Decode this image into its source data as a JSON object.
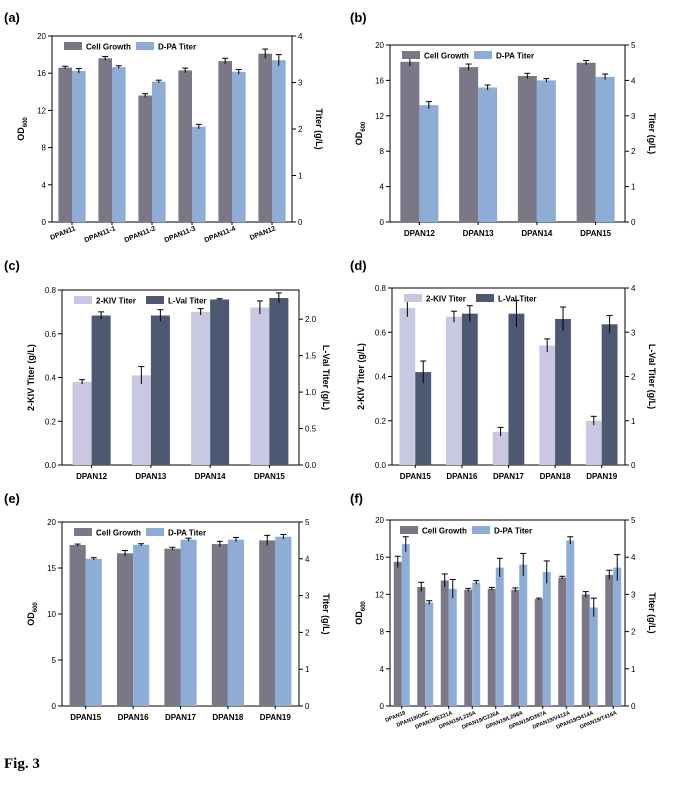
{
  "figure_label": "Fig. 3",
  "colors": {
    "od": "#7b7786",
    "titer": "#8eadd6",
    "kiv": "#c9c8e2",
    "val": "#4d5873",
    "axis": "#000000"
  },
  "chart_data": [
    {
      "panel": "(a)",
      "type": "bar",
      "categories": [
        "DPAN11",
        "DPAN11-1",
        "DPAN11-2",
        "DPAN11-3",
        "DPAN11-4",
        "DPAN12"
      ],
      "ylabel": "OD600",
      "y2label": "Titer (g/L)",
      "ylim": [
        0,
        20
      ],
      "yticks": [
        "0",
        "4",
        "8",
        "12",
        "16",
        "20"
      ],
      "y2lim": [
        0,
        4
      ],
      "y2ticks": [
        "0",
        "1",
        "2",
        "3",
        "4"
      ],
      "legend": "top-left",
      "rotate": true,
      "series": [
        {
          "name": "Cell Growth",
          "axis": "left",
          "color": "od",
          "values": [
            16.6,
            17.6,
            13.6,
            16.3,
            17.3,
            18.1
          ],
          "errors": [
            0.15,
            0.2,
            0.2,
            0.25,
            0.3,
            0.5
          ]
        },
        {
          "name": "D-PA Titer",
          "axis": "right",
          "color": "titer",
          "values": [
            3.25,
            3.33,
            3.02,
            2.05,
            3.23,
            3.48
          ],
          "errors": [
            0.05,
            0.03,
            0.03,
            0.05,
            0.05,
            0.12
          ]
        }
      ]
    },
    {
      "panel": "(b)",
      "type": "bar",
      "categories": [
        "DPAN12",
        "DPAN13",
        "DPAN14",
        "DPAN15"
      ],
      "ylabel": "OD600",
      "y2label": "Titer (g/L)",
      "ylim": [
        0,
        20
      ],
      "yticks": [
        "0",
        "4",
        "8",
        "12",
        "16",
        "20"
      ],
      "y2lim": [
        0,
        5
      ],
      "y2ticks": [
        "0",
        "1",
        "2",
        "3",
        "4",
        "5"
      ],
      "legend": "top-left",
      "rotate": false,
      "series": [
        {
          "name": "Cell Growth",
          "axis": "left",
          "color": "od",
          "values": [
            18.1,
            17.5,
            16.5,
            18.0
          ],
          "errors": [
            0.5,
            0.35,
            0.3,
            0.25
          ]
        },
        {
          "name": "D-PA Titer",
          "axis": "right",
          "color": "titer",
          "values": [
            3.3,
            3.8,
            4.0,
            4.1
          ],
          "errors": [
            0.1,
            0.07,
            0.05,
            0.08
          ]
        }
      ]
    },
    {
      "panel": "(c)",
      "type": "bar",
      "categories": [
        "DPAN12",
        "DPAN13",
        "DPAN14",
        "DPAN15"
      ],
      "ylabel": "2-KIV Titer (g/L)",
      "y2label": "L-Val Titer (g/L)",
      "ylim": [
        0,
        0.8
      ],
      "yticks": [
        "0.0",
        "0.2",
        "0.4",
        "0.6",
        "0.8"
      ],
      "y2lim": [
        0,
        2.4
      ],
      "y2ticks": [
        "0.0",
        "0.5",
        "1.0",
        "1.5",
        "2.0"
      ],
      "y2tickvals": [
        0,
        0.5,
        1.0,
        1.5,
        2.0
      ],
      "legend": "top-left",
      "rotate": false,
      "series": [
        {
          "name": "2-KIV Titer",
          "axis": "left",
          "color": "kiv",
          "values": [
            0.38,
            0.41,
            0.7,
            0.72
          ],
          "errors": [
            0.01,
            0.04,
            0.015,
            0.03
          ]
        },
        {
          "name": "L-Val Titer",
          "axis": "right",
          "color": "val",
          "values": [
            2.05,
            2.05,
            2.27,
            2.29
          ],
          "errors": [
            0.05,
            0.08,
            0.01,
            0.07
          ]
        }
      ]
    },
    {
      "panel": "(d)",
      "type": "bar",
      "categories": [
        "DPAN15",
        "DPAN16",
        "DPAN17",
        "DPAN18",
        "DPAN19"
      ],
      "ylabel": "2-KIV Titer (g/L)",
      "y2label": "L-Val Titer (g/L)",
      "ylim": [
        0,
        0.8
      ],
      "yticks": [
        "0.0",
        "0.2",
        "0.4",
        "0.6",
        "0.8"
      ],
      "y2lim": [
        0,
        4
      ],
      "y2ticks": [
        "0",
        "1",
        "2",
        "3",
        "4"
      ],
      "legend": "top-left",
      "rotate": false,
      "series": [
        {
          "name": "2-KIV Titer",
          "axis": "left",
          "color": "kiv",
          "values": [
            0.71,
            0.67,
            0.15,
            0.54,
            0.2
          ],
          "errors": [
            0.04,
            0.025,
            0.02,
            0.03,
            0.02
          ]
        },
        {
          "name": "L-Val Titer",
          "axis": "right",
          "color": "val",
          "values": [
            2.1,
            3.42,
            3.42,
            3.3,
            3.18
          ],
          "errors": [
            0.25,
            0.18,
            0.3,
            0.27,
            0.2
          ]
        }
      ]
    },
    {
      "panel": "(e)",
      "type": "bar",
      "categories": [
        "DPAN15",
        "DPAN16",
        "DPAN17",
        "DPAN18",
        "DPAN19"
      ],
      "ylabel": "OD600",
      "y2label": "Titer (g/L)",
      "ylim": [
        0,
        20
      ],
      "yticks": [
        "0",
        "5",
        "10",
        "15",
        "20"
      ],
      "y2lim": [
        0,
        5
      ],
      "y2ticks": [
        "0",
        "1",
        "2",
        "3",
        "4",
        "5"
      ],
      "legend": "top-left",
      "rotate": false,
      "series": [
        {
          "name": "Cell Growth",
          "axis": "left",
          "color": "od",
          "values": [
            17.5,
            16.6,
            17.1,
            17.6,
            18.0
          ],
          "errors": [
            0.1,
            0.3,
            0.15,
            0.3,
            0.55
          ]
        },
        {
          "name": "D-PA Titer",
          "axis": "right",
          "color": "titer",
          "values": [
            4.0,
            4.38,
            4.52,
            4.52,
            4.6
          ],
          "errors": [
            0.03,
            0.03,
            0.04,
            0.06,
            0.06
          ]
        }
      ]
    },
    {
      "panel": "(f)",
      "type": "bar",
      "categories": [
        "DPAN19",
        "DPAN19/GltC",
        "DPAN19/E221A",
        "DPAN19/L225A",
        "DPAN19/C226A",
        "DPAN19/L298A",
        "DPAN19/D397A",
        "DPAN19/V412A",
        "DPAN19/S414A",
        "DPAN19/T416A"
      ],
      "ylabel": "OD600",
      "y2label": "Titer (g/L)",
      "ylim": [
        0,
        20
      ],
      "yticks": [
        "0",
        "4",
        "8",
        "12",
        "16",
        "20"
      ],
      "y2lim": [
        0,
        5
      ],
      "y2ticks": [
        "0",
        "1",
        "2",
        "3",
        "4",
        "5"
      ],
      "legend": "top-right",
      "rotate": true,
      "series": [
        {
          "name": "Cell Growth",
          "axis": "left",
          "color": "od",
          "values": [
            15.5,
            12.8,
            13.5,
            12.5,
            12.6,
            12.5,
            11.5,
            13.8,
            12.0,
            14.1
          ],
          "errors": [
            0.6,
            0.5,
            0.7,
            0.15,
            0.15,
            0.2,
            0.1,
            0.15,
            0.3,
            0.5
          ]
        },
        {
          "name": "D-PA Titer",
          "axis": "right",
          "color": "titer",
          "values": [
            4.35,
            2.78,
            3.15,
            3.32,
            3.72,
            3.8,
            3.6,
            4.45,
            2.65,
            3.72
          ],
          "errors": [
            0.2,
            0.05,
            0.25,
            0.05,
            0.25,
            0.3,
            0.3,
            0.1,
            0.25,
            0.35
          ]
        }
      ]
    }
  ]
}
